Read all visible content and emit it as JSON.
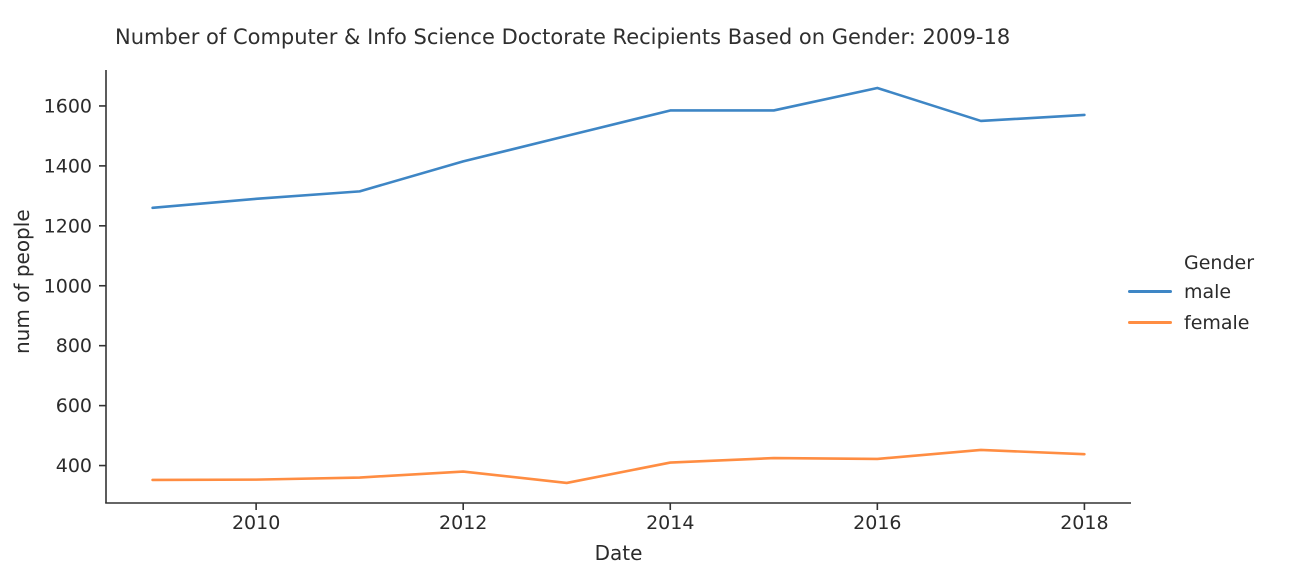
{
  "chart_data": {
    "type": "line",
    "title": "Number of Computer & Info Science Doctorate Recipients Based on Gender: 2009-18",
    "xlabel": "Date",
    "ylabel": "num of people",
    "x": [
      2009,
      2010,
      2011,
      2012,
      2013,
      2014,
      2015,
      2016,
      2017,
      2018
    ],
    "series": [
      {
        "name": "male",
        "color": "#3e86c5",
        "values": [
          1260,
          1290,
          1315,
          1415,
          1500,
          1585,
          1585,
          1660,
          1550,
          1570
        ]
      },
      {
        "name": "female",
        "color": "#ff8d42",
        "values": [
          352,
          353,
          360,
          380,
          342,
          410,
          425,
          422,
          452,
          438
        ]
      }
    ],
    "legend": {
      "title": "Gender",
      "position": "right",
      "entries": [
        "male",
        "female"
      ]
    },
    "x_ticks": [
      2010,
      2012,
      2014,
      2016,
      2018
    ],
    "y_ticks": [
      400,
      600,
      800,
      1000,
      1200,
      1400,
      1600
    ],
    "xlim": [
      2008.55,
      2018.45
    ],
    "ylim": [
      275,
      1720
    ],
    "grid": false,
    "axis_color": "#333333",
    "text_color": "#2b2b2b"
  }
}
